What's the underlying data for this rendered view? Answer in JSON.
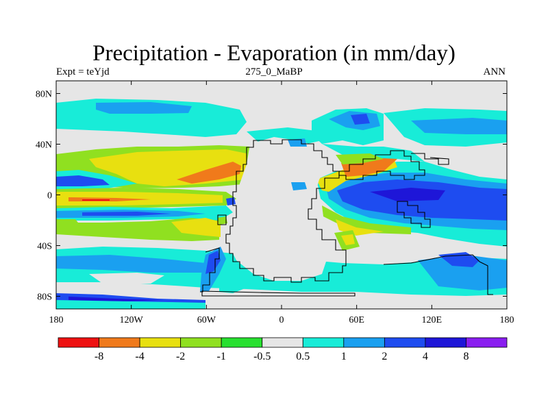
{
  "title": "Precipitation - Evaporation (in mm/day)",
  "subtitle_left": "Expt = teYjd",
  "subtitle_center": "275_0_MaBP",
  "subtitle_right": "ANN",
  "x_ticks": [
    "180",
    "120W",
    "60W",
    "0",
    "60E",
    "120E",
    "180"
  ],
  "y_ticks": [
    "80N",
    "40N",
    "0",
    "40S",
    "80S"
  ],
  "colorbar": {
    "colors": [
      "#ee1111",
      "#f07a1b",
      "#e8e010",
      "#90e020",
      "#28e030",
      "#e6e6e6",
      "#18ecd8",
      "#1aa0f0",
      "#1e4cf0",
      "#1e16d8",
      "#8a1ef0"
    ],
    "labels": [
      "-8",
      "-4",
      "-2",
      "-1",
      "-0.5",
      "0.5",
      "1",
      "2",
      "4",
      "8"
    ]
  }
}
